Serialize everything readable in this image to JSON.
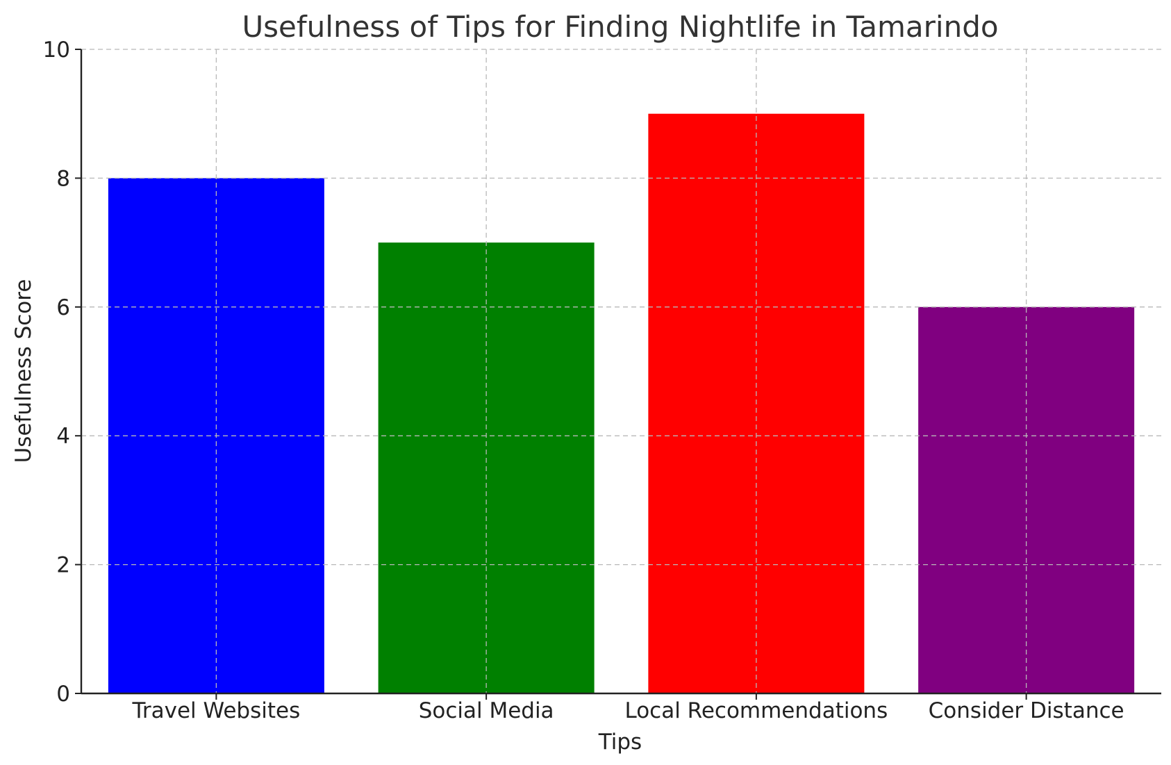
{
  "chart_data": {
    "type": "bar",
    "title": "Usefulness of Tips for Finding Nightlife in Tamarindo",
    "xlabel": "Tips",
    "ylabel": "Usefulness Score",
    "categories": [
      "Travel Websites",
      "Social Media",
      "Local Recommendations",
      "Consider Distance"
    ],
    "values": [
      8,
      7,
      9,
      6
    ],
    "colors": [
      "#0000ff",
      "#008000",
      "#ff0000",
      "#800080"
    ],
    "ylim": [
      0,
      10
    ],
    "yticks": [
      0,
      2,
      4,
      6,
      8,
      10
    ],
    "grid": true,
    "legend": "none"
  }
}
